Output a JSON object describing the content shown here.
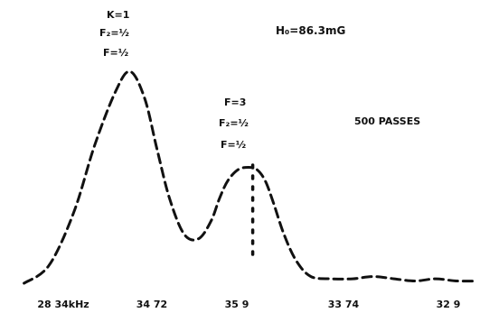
{
  "chart_data": {
    "type": "line",
    "title": "",
    "xlabel": "",
    "ylabel": "",
    "annotations": {
      "condition": "H₀=86.3mG",
      "passes": "500 PASSES",
      "peak1_labels": [
        "K=1",
        "F₂=½",
        "F=½"
      ],
      "peak2_labels": [
        "F=3",
        "F₂=½",
        "F=½"
      ]
    },
    "x_ticks": [
      {
        "value": 0.13,
        "label": "28 34kHz"
      },
      {
        "value": 0.63,
        "label": "34 72"
      },
      {
        "value": 1.12,
        "label": "35 9"
      },
      {
        "value": 1.61,
        "label": "33 74"
      },
      {
        "value": 2.1,
        "label": "32 9"
      }
    ],
    "xlim": [
      0,
      2.2
    ],
    "ylim": [
      0,
      1.02
    ],
    "series": [
      {
        "x": [
          0.02,
          0.14,
          0.26,
          0.36,
          0.46,
          0.53,
          0.6,
          0.66,
          0.72,
          0.79,
          0.86,
          0.92,
          0.96,
          1.0,
          1.05,
          1.1,
          1.14,
          1.18,
          1.22,
          1.27,
          1.33,
          1.4,
          1.5,
          1.6,
          1.7,
          1.8,
          1.9,
          2.0,
          2.1,
          2.2
        ],
        "y": [
          0.0,
          0.08,
          0.32,
          0.62,
          0.86,
          0.95,
          0.83,
          0.6,
          0.38,
          0.22,
          0.2,
          0.28,
          0.38,
          0.46,
          0.51,
          0.52,
          0.51,
          0.46,
          0.36,
          0.22,
          0.1,
          0.03,
          0.02,
          0.02,
          0.03,
          0.02,
          0.01,
          0.02,
          0.01,
          0.01
        ]
      }
    ],
    "markers": [
      {
        "x": 1.12,
        "y_from": 0.11,
        "y_to": 0.53
      }
    ]
  }
}
